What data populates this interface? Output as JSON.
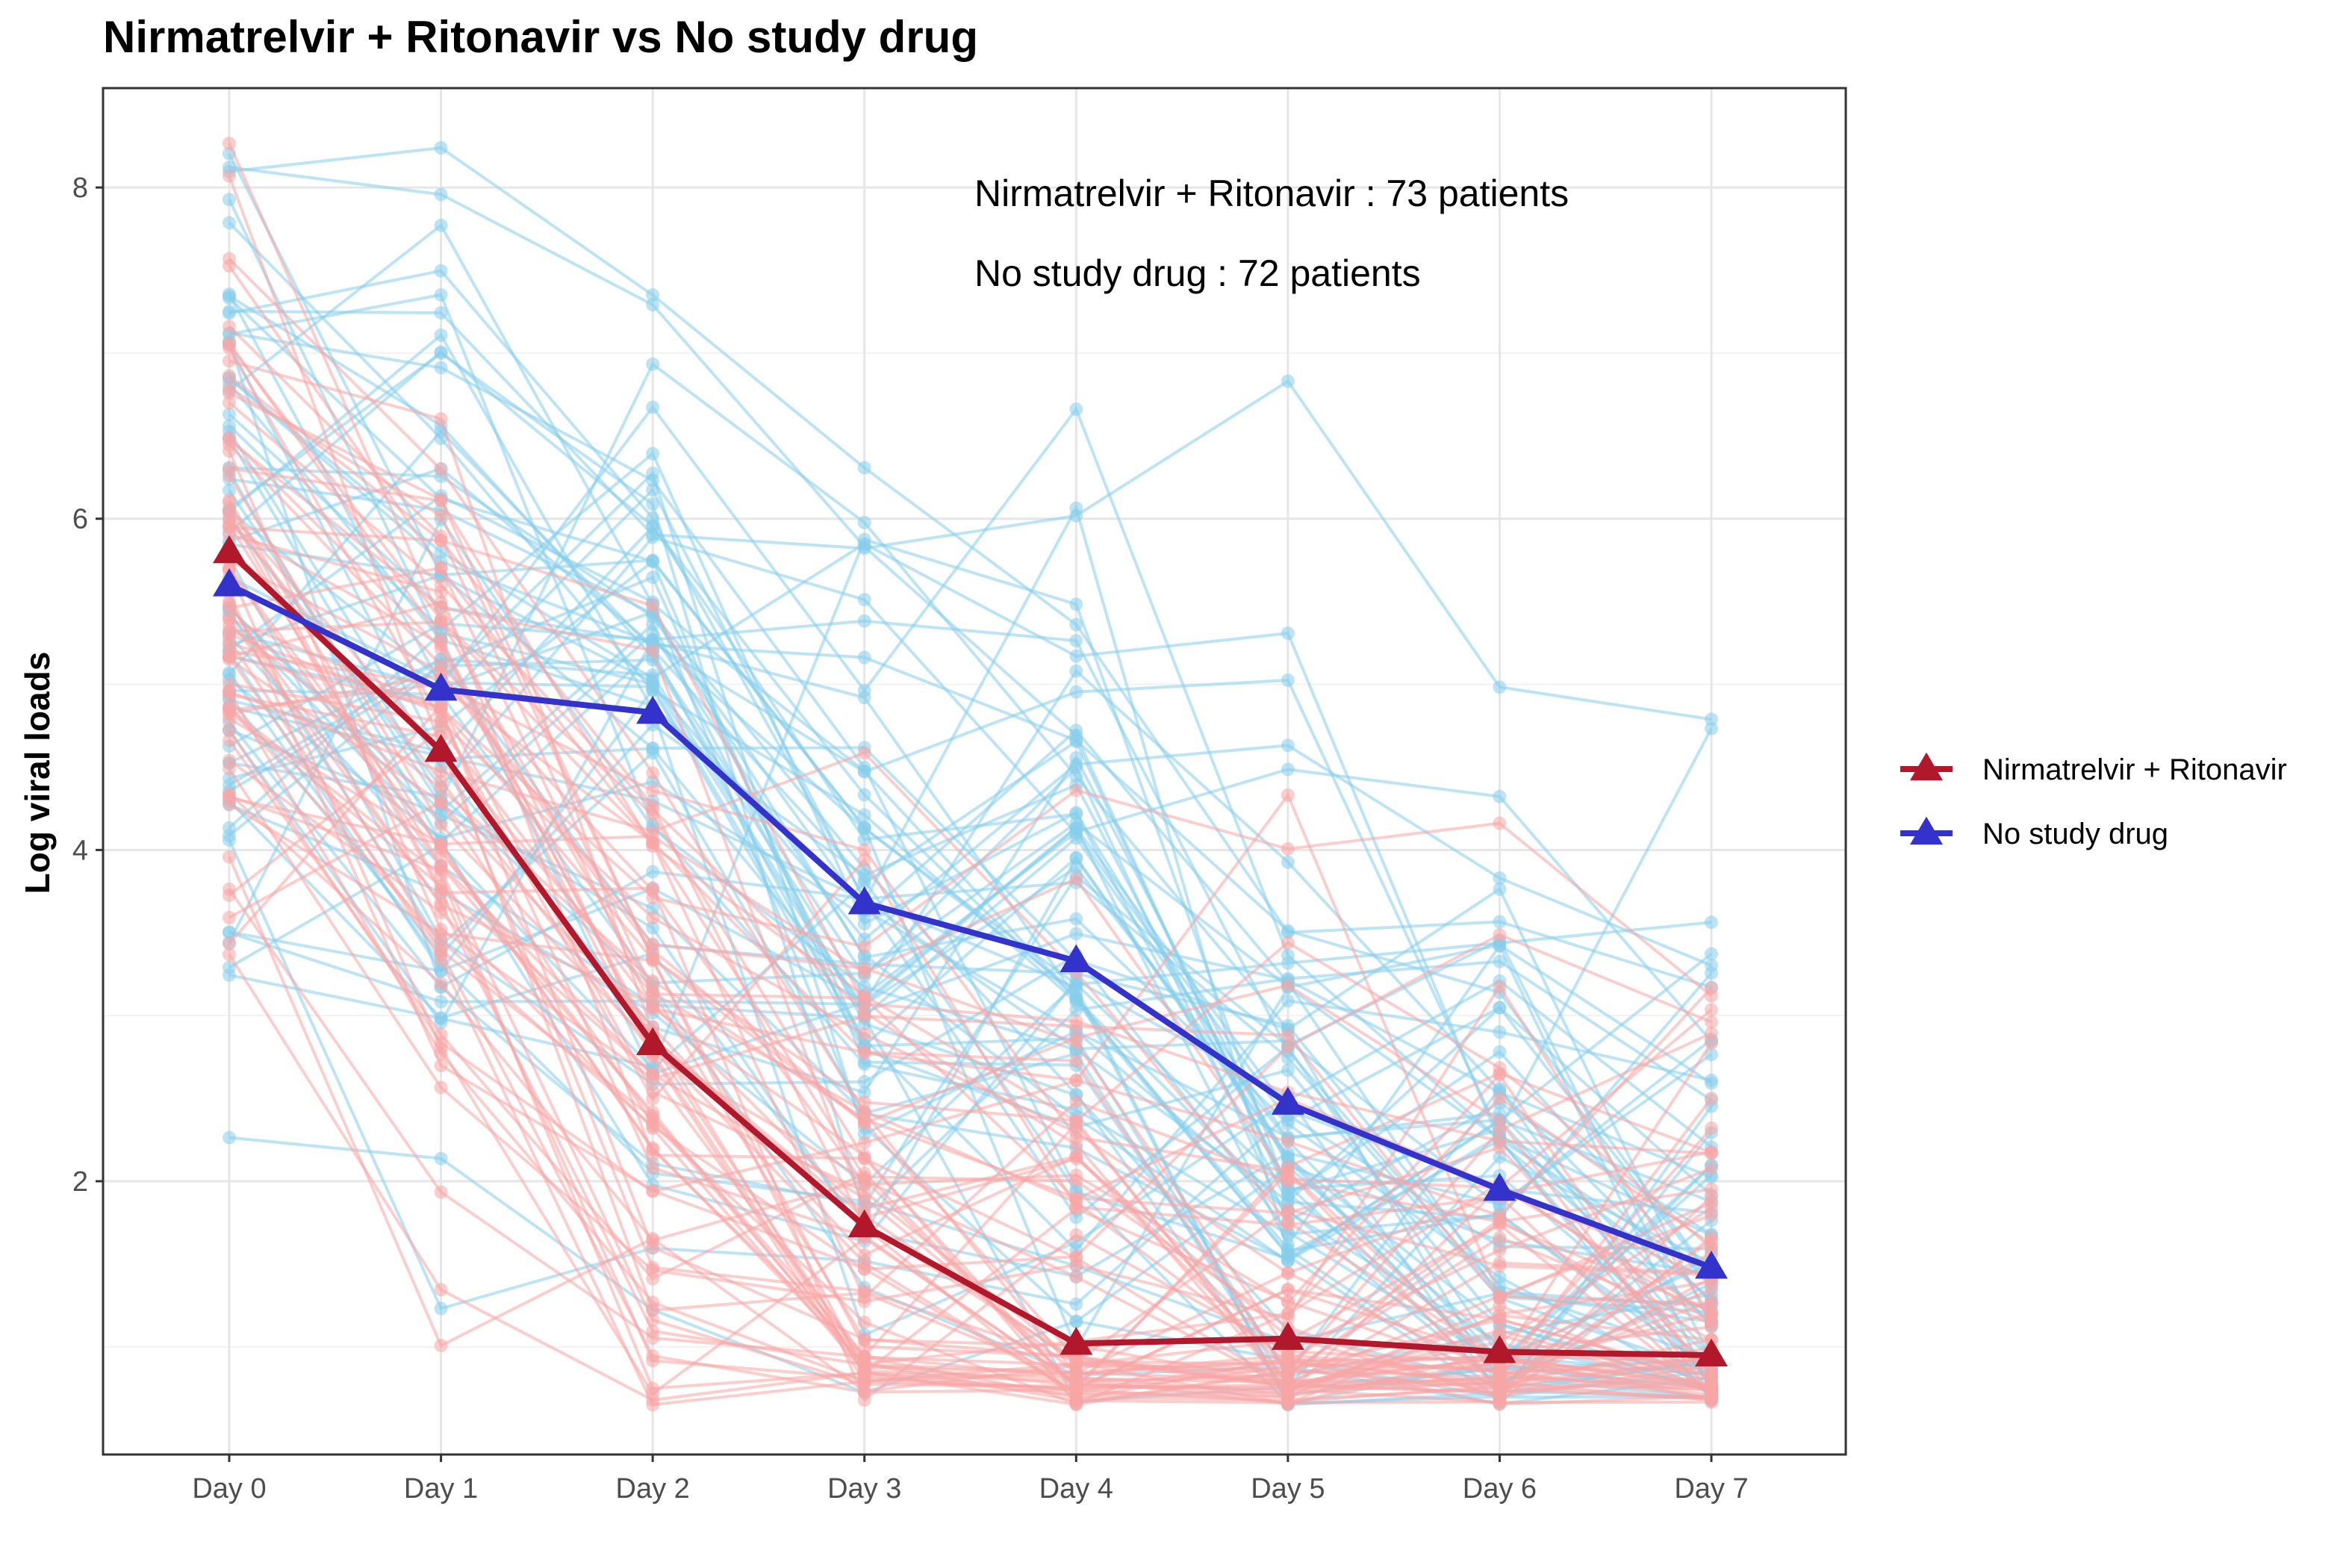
{
  "chart_data": {
    "type": "line",
    "title": "Nirmatrelvir + Ritonavir vs No study drug",
    "xlabel": "",
    "ylabel": "Log viral loads",
    "categories": [
      "Day 0",
      "Day 1",
      "Day 2",
      "Day 3",
      "Day 4",
      "Day 5",
      "Day 6",
      "Day 7"
    ],
    "ylim": [
      0.35,
      8.6
    ],
    "yticks": [
      2,
      4,
      6,
      8
    ],
    "grid": true,
    "legend_position": "right",
    "annotations": [
      "Nirmatrelvir + Ritonavir : 73 patients",
      "No study drug : 72 patients"
    ],
    "series": [
      {
        "name": "Nirmatrelvir + Ritonavir",
        "color": "#b2182b",
        "marker": "triangle",
        "values": [
          5.8,
          4.6,
          2.83,
          1.73,
          1.02,
          1.05,
          0.97,
          0.95
        ]
      },
      {
        "name": "No study drug",
        "color": "#3333cc",
        "marker": "triangle",
        "values": [
          5.6,
          4.97,
          4.83,
          3.68,
          3.33,
          2.47,
          1.95,
          1.48
        ]
      }
    ],
    "individual_trajectories": {
      "counts": {
        "Nirmatrelvir + Ritonavir": 73,
        "No study drug": 72
      },
      "colors": {
        "Nirmatrelvir + Ritonavir": "#f8a5a5",
        "No study drug": "#87ceeb"
      }
    }
  }
}
